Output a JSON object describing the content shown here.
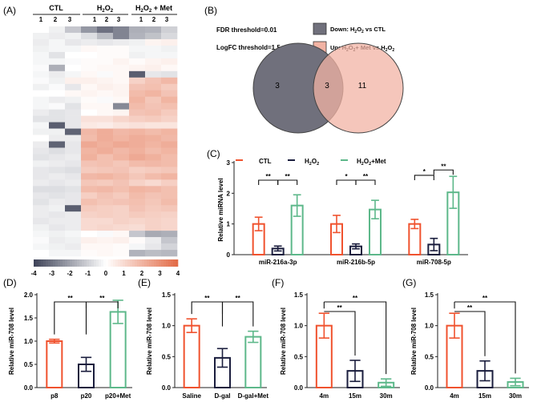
{
  "panels": {
    "A": {
      "label": "(A)",
      "groups": [
        {
          "name": "CTL",
          "reps": [
            "1",
            "2",
            "3"
          ]
        },
        {
          "name": "H2O2",
          "reps": [
            "1",
            "2",
            "3"
          ]
        },
        {
          "name": "H2O2 + Met",
          "reps": [
            "1",
            "2",
            "3"
          ]
        }
      ],
      "scale_ticks": [
        "-4",
        "-3",
        "-2",
        "-1",
        "0",
        "1",
        "2",
        "3",
        "4"
      ]
    },
    "B": {
      "label": "(B)",
      "fdr_text": "FDR threshold=0.01",
      "logfc_text": "LogFC threshold=1.5",
      "legend": [
        {
          "label": "Down: H2O2 vs CTL",
          "color": "#70707c"
        },
        {
          "label": "Up: H2O2+ Met vs H2O2",
          "color": "#f2b3a4"
        }
      ],
      "counts": [
        "3",
        "3",
        "11"
      ]
    },
    "C": {
      "label": "(C)"
    },
    "D": {
      "label": "(D)"
    },
    "E": {
      "label": "(E)"
    },
    "F": {
      "label": "(F)"
    },
    "G": {
      "label": "(G)"
    }
  },
  "colors": {
    "ctl": "#f0522e",
    "h2o2": "#1a1d3d",
    "met": "#5db88a",
    "sig": "#111111"
  },
  "chart_data": [
    {
      "id": "A",
      "type": "heatmap",
      "columns": [
        "CTL 1",
        "CTL 2",
        "CTL 3",
        "H2O2 1",
        "H2O2 2",
        "H2O2 3",
        "H2O2 + Met 1",
        "H2O2 + Met 2",
        "H2O2 + Met 3"
      ],
      "colorbar": {
        "min": -4,
        "max": 4,
        "low_color": "#3d4257",
        "mid_color": "#ffffff",
        "high_color": "#e26a45"
      },
      "values": [
        [
          0.0,
          -0.3,
          -1.2,
          -2.2,
          -3.0,
          -2.6,
          -1.7,
          -1.6,
          -1.0
        ],
        [
          -0.3,
          -0.4,
          -0.3,
          -0.7,
          -1.4,
          -2.6,
          -1.6,
          -1.3,
          -0.8
        ],
        [
          -0.4,
          -0.2,
          -0.5,
          -0.4,
          -0.5,
          -0.4,
          -0.3,
          0.3,
          0.4
        ],
        [
          -0.3,
          -0.2,
          -0.2,
          0.2,
          0.1,
          0.1,
          -0.2,
          -0.2,
          -0.3
        ],
        [
          -0.2,
          -0.6,
          0.0,
          0.0,
          0.1,
          0.1,
          -0.3,
          -0.2,
          -0.2
        ],
        [
          -0.2,
          -0.2,
          -0.1,
          0.1,
          0.1,
          0.3,
          0.1,
          0.3,
          0.4
        ],
        [
          -0.1,
          -1.7,
          0.0,
          0.1,
          0.2,
          0.2,
          0.3,
          0.4,
          0.2
        ],
        [
          -0.2,
          -0.4,
          -0.2,
          0.2,
          -0.1,
          0.2,
          -3.4,
          -0.5,
          -0.6
        ],
        [
          -0.1,
          -0.3,
          0.4,
          0.4,
          0.3,
          0.2,
          1.2,
          1.6,
          1.9
        ],
        [
          -0.3,
          -0.1,
          -0.5,
          0.2,
          0.4,
          0.3,
          1.6,
          1.7,
          1.4
        ],
        [
          0.0,
          0.0,
          0.2,
          0.3,
          0.2,
          0.3,
          1.8,
          2.0,
          1.6
        ],
        [
          -0.2,
          -0.4,
          -0.3,
          0.1,
          -0.1,
          0.2,
          2.0,
          1.5,
          2.0
        ],
        [
          -0.2,
          -0.1,
          -0.6,
          0.2,
          0.2,
          -2.5,
          1.8,
          1.6,
          1.7
        ],
        [
          -0.4,
          -0.6,
          -0.5,
          0.0,
          0.2,
          0.3,
          1.6,
          1.7,
          1.4
        ],
        [
          -0.6,
          -0.6,
          -0.5,
          0.8,
          0.8,
          1.1,
          1.3,
          1.4,
          1.2
        ],
        [
          -0.2,
          -3.4,
          -0.5,
          0.6,
          0.5,
          0.7,
          0.8,
          0.7,
          0.7
        ],
        [
          -0.3,
          -0.3,
          -3.3,
          1.9,
          2.2,
          1.9,
          2.0,
          1.8,
          2.0
        ],
        [
          0.0,
          -0.4,
          -0.4,
          1.8,
          2.2,
          2.0,
          2.2,
          2.1,
          1.9
        ],
        [
          -0.4,
          -3.3,
          -0.5,
          2.3,
          2.1,
          2.3,
          2.2,
          2.0,
          2.2
        ],
        [
          -0.5,
          -0.7,
          -0.5,
          2.0,
          2.2,
          1.9,
          2.1,
          1.8,
          2.0
        ],
        [
          -0.6,
          -0.5,
          -0.4,
          2.1,
          1.7,
          2.0,
          2.3,
          2.1,
          1.8
        ],
        [
          -0.3,
          -0.4,
          -0.5,
          1.6,
          1.7,
          1.5,
          1.8,
          1.9,
          1.8
        ],
        [
          -0.5,
          -0.6,
          -0.7,
          1.4,
          1.5,
          1.6,
          1.3,
          1.4,
          1.5
        ],
        [
          -0.5,
          -0.4,
          -0.5,
          1.9,
          2.0,
          1.8,
          1.5,
          1.8,
          2.0
        ],
        [
          -0.4,
          -0.5,
          -0.4,
          1.5,
          1.4,
          1.6,
          1.2,
          1.0,
          1.3
        ],
        [
          -0.7,
          -0.7,
          -0.6,
          1.8,
          1.9,
          1.7,
          2.0,
          1.9,
          1.7
        ],
        [
          -0.5,
          -0.6,
          -0.5,
          1.3,
          1.6,
          1.4,
          1.8,
          1.6,
          1.7
        ],
        [
          -0.6,
          -0.4,
          -0.5,
          1.7,
          1.5,
          1.6,
          1.7,
          1.5,
          1.8
        ],
        [
          -0.4,
          -0.3,
          -3.4,
          1.4,
          1.3,
          1.2,
          1.6,
          1.4,
          1.5
        ],
        [
          -0.4,
          -0.5,
          -0.4,
          1.2,
          1.3,
          1.2,
          1.4,
          1.3,
          1.2
        ],
        [
          -0.5,
          -0.4,
          -0.4,
          1.0,
          1.0,
          1.2,
          1.1,
          1.2,
          1.1
        ],
        [
          -0.3,
          -0.5,
          -0.4,
          1.0,
          1.1,
          1.0,
          0.9,
          1.2,
          1.1
        ],
        [
          -0.2,
          -0.3,
          -0.2,
          0.0,
          -0.1,
          0.2,
          -1.2,
          -1.8,
          -1.7
        ],
        [
          -0.1,
          -0.4,
          -0.3,
          0.4,
          0.3,
          0.4,
          0.1,
          -0.4,
          -1.2
        ],
        [
          -0.2,
          -0.3,
          -0.4,
          0.2,
          0.2,
          0.1,
          -0.2,
          -0.5,
          -0.9
        ],
        [
          0.0,
          -0.2,
          -0.2,
          0.1,
          0.2,
          0.1,
          -1.6,
          -1.4,
          -1.5
        ]
      ]
    },
    {
      "id": "C",
      "type": "bar",
      "categories": [
        "miR-216a-3p",
        "miR-216b-5p",
        "miR-708-5p"
      ],
      "series": [
        {
          "name": "CTL",
          "color": "#f0522e",
          "values": [
            1.0,
            1.0,
            1.0
          ],
          "errors": [
            0.22,
            0.28,
            0.15
          ]
        },
        {
          "name": "H2O2",
          "color": "#1a1d3d",
          "values": [
            0.2,
            0.27,
            0.33
          ],
          "errors": [
            0.08,
            0.08,
            0.2
          ]
        },
        {
          "name": "H2O2+Met",
          "color": "#5db88a",
          "values": [
            1.6,
            1.47,
            2.03
          ],
          "errors": [
            0.35,
            0.3,
            0.52
          ]
        }
      ],
      "ylabel": "Relative miRNA level",
      "ylim": [
        0,
        3
      ],
      "yticks": [
        0,
        1,
        2,
        3
      ],
      "significance": [
        {
          "cat": 0,
          "pairs": [
            [
              0,
              1,
              "**"
            ],
            [
              1,
              2,
              "**"
            ]
          ]
        },
        {
          "cat": 1,
          "pairs": [
            [
              0,
              1,
              "*"
            ],
            [
              1,
              2,
              "**"
            ]
          ]
        },
        {
          "cat": 2,
          "pairs": [
            [
              0,
              1,
              "*"
            ],
            [
              1,
              2,
              "**"
            ]
          ]
        }
      ]
    },
    {
      "id": "D",
      "type": "bar",
      "categories": [
        "p8",
        "p20",
        "p20+Met"
      ],
      "values": [
        1.0,
        0.5,
        1.63
      ],
      "errors": [
        0.04,
        0.15,
        0.25
      ],
      "bar_colors": [
        "#f0522e",
        "#1a1d3d",
        "#5db88a"
      ],
      "ylabel": "Relative miR-708 level",
      "ylim": [
        0,
        2.0
      ],
      "yticks": [
        0.0,
        0.5,
        1.0,
        1.5,
        2.0
      ],
      "significance": [
        [
          0,
          1,
          "**"
        ],
        [
          1,
          2,
          "**"
        ]
      ]
    },
    {
      "id": "E",
      "type": "bar",
      "categories": [
        "Saline",
        "D-gal",
        "D-gal+Met"
      ],
      "values": [
        1.0,
        0.48,
        0.82
      ],
      "errors": [
        0.11,
        0.15,
        0.09
      ],
      "bar_colors": [
        "#f0522e",
        "#1a1d3d",
        "#5db88a"
      ],
      "ylabel": "Relative miR-708 level",
      "ylim": [
        0,
        1.5
      ],
      "yticks": [
        0.0,
        0.5,
        1.0,
        1.5
      ],
      "significance": [
        [
          0,
          1,
          "**"
        ],
        [
          1,
          2,
          "**"
        ]
      ]
    },
    {
      "id": "F",
      "type": "bar",
      "categories": [
        "4m",
        "15m",
        "30m"
      ],
      "values": [
        1.0,
        0.27,
        0.08
      ],
      "errors": [
        0.2,
        0.17,
        0.06
      ],
      "bar_colors": [
        "#f0522e",
        "#1a1d3d",
        "#5db88a"
      ],
      "ylabel": "Relative miR-708 level",
      "ylim": [
        0,
        1.5
      ],
      "yticks": [
        0.0,
        0.5,
        1.0,
        1.5
      ],
      "significance": [
        [
          0,
          1,
          "**"
        ],
        [
          0,
          2,
          "**"
        ]
      ]
    },
    {
      "id": "G",
      "type": "bar",
      "categories": [
        "4m",
        "15m",
        "30m"
      ],
      "values": [
        1.0,
        0.27,
        0.09
      ],
      "errors": [
        0.2,
        0.16,
        0.06
      ],
      "bar_colors": [
        "#f0522e",
        "#1a1d3d",
        "#5db88a"
      ],
      "ylabel": "Relative miR-708 level",
      "ylim": [
        0,
        1.5
      ],
      "yticks": [
        0.0,
        0.5,
        1.0,
        1.5
      ],
      "significance": [
        [
          0,
          1,
          "**"
        ],
        [
          0,
          2,
          "**"
        ]
      ]
    }
  ]
}
